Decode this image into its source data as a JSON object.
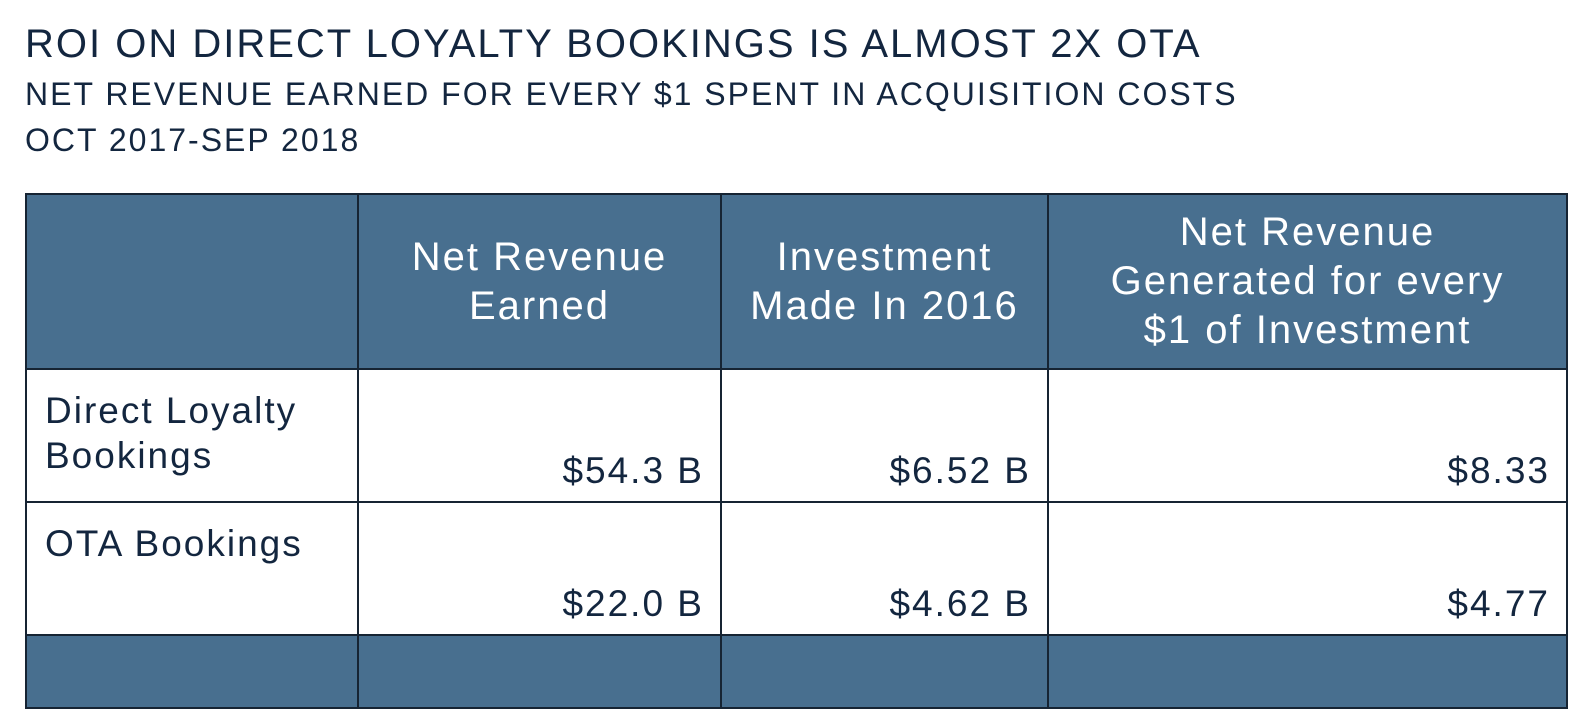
{
  "header": {
    "title": "ROI ON DIRECT LOYALTY BOOKINGS IS ALMOST 2X OTA",
    "subtitle": "NET REVENUE EARNED FOR EVERY $1 SPENT IN ACQUISITION COSTS",
    "period": "OCT 2017-SEP 2018"
  },
  "table": {
    "columns": [
      "",
      "Net Revenue Earned",
      "Investment Made In 2016",
      "Net Revenue Generated for every $1 of Investment"
    ],
    "rows": [
      {
        "label": "Direct Loyalty Bookings",
        "net_revenue": "$54.3 B",
        "investment": "$6.52 B",
        "per_dollar": "$8.33"
      },
      {
        "label": "OTA Bookings",
        "net_revenue": "$22.0 B",
        "investment": "$4.62 B",
        "per_dollar": "$4.77"
      }
    ]
  },
  "chart_data": {
    "type": "table",
    "title": "ROI ON DIRECT LOYALTY BOOKINGS IS ALMOST 2X OTA",
    "subtitle": "NET REVENUE EARNED FOR EVERY $1 SPENT IN ACQUISITION COSTS",
    "columns": [
      "Net Revenue Earned",
      "Investment Made In 2016",
      "Net Revenue Generated for every $1 of Investment"
    ],
    "rows": [
      "Direct Loyalty Bookings",
      "OTA Bookings"
    ],
    "values": [
      [
        54.3,
        6.52,
        8.33
      ],
      [
        22.0,
        4.62,
        4.77
      ]
    ],
    "units": [
      "$ B",
      "$ B",
      "$"
    ]
  },
  "colors": {
    "header_fill": "#486f8f",
    "border": "#162433",
    "text": "#13263f"
  }
}
